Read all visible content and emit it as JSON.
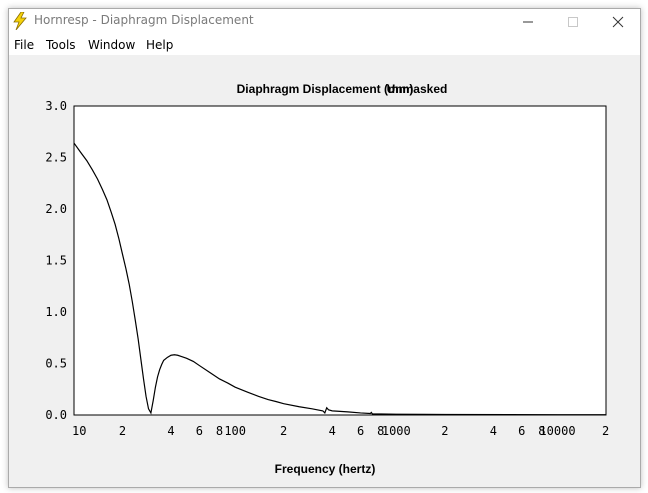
{
  "window": {
    "title": "Hornresp - Diaphragm Displacement",
    "icon": "lightning-bolt-icon",
    "controls": [
      "minimize-icon",
      "maximize-icon",
      "close-icon"
    ]
  },
  "menu": {
    "items": [
      "File",
      "Tools",
      "Window",
      "Help"
    ]
  },
  "chart_title": "Diaphragm Displacement (mm)",
  "mask_status": "Unmasked",
  "colors": {
    "grid": "#c8c8c8",
    "axis": "#000000",
    "curve": "#000000",
    "plot_bg": "#ffffff"
  },
  "chart_data": {
    "type": "line",
    "title": "Diaphragm Displacement (mm)",
    "xlabel": "Frequency (hertz)",
    "ylabel": "",
    "xscale": "log",
    "xlim": [
      10,
      20000
    ],
    "ylim": [
      0,
      3.0
    ],
    "grid": true,
    "y_ticks": [
      "3.0",
      "2.5",
      "2.0",
      "1.5",
      "1.0",
      "0.5",
      "0.0"
    ],
    "x_ticks": [
      {
        "value": 10,
        "label": "10"
      },
      {
        "value": 20,
        "label": "2"
      },
      {
        "value": 40,
        "label": "4"
      },
      {
        "value": 60,
        "label": "6"
      },
      {
        "value": 80,
        "label": "8"
      },
      {
        "value": 100,
        "label": "100"
      },
      {
        "value": 200,
        "label": "2"
      },
      {
        "value": 400,
        "label": "4"
      },
      {
        "value": 600,
        "label": "6"
      },
      {
        "value": 800,
        "label": "8"
      },
      {
        "value": 1000,
        "label": "1000"
      },
      {
        "value": 2000,
        "label": "2"
      },
      {
        "value": 4000,
        "label": "4"
      },
      {
        "value": 6000,
        "label": "6"
      },
      {
        "value": 8000,
        "label": "8"
      },
      {
        "value": 10000,
        "label": "10000"
      },
      {
        "value": 20000,
        "label": "2"
      }
    ],
    "series": [
      {
        "x": [
          10,
          11,
          12,
          13,
          14,
          15,
          16,
          17,
          18,
          19,
          20,
          21,
          22,
          23,
          24,
          25,
          26,
          27,
          28,
          29,
          30,
          31,
          32,
          33,
          34,
          35,
          36,
          38,
          40,
          42,
          44,
          46,
          48,
          50,
          55,
          60,
          70,
          80,
          90,
          100,
          120,
          140,
          160,
          180,
          200,
          250,
          300,
          350,
          360,
          370,
          380,
          400,
          500,
          600,
          690,
          700,
          710,
          800,
          1000,
          1500,
          2000,
          5000,
          10000,
          20000
        ],
        "y": [
          2.64,
          2.55,
          2.47,
          2.38,
          2.29,
          2.19,
          2.09,
          1.97,
          1.85,
          1.71,
          1.56,
          1.42,
          1.27,
          1.1,
          0.92,
          0.74,
          0.54,
          0.35,
          0.18,
          0.06,
          0.02,
          0.14,
          0.27,
          0.37,
          0.44,
          0.49,
          0.53,
          0.56,
          0.58,
          0.585,
          0.58,
          0.57,
          0.56,
          0.55,
          0.52,
          0.48,
          0.41,
          0.35,
          0.31,
          0.27,
          0.22,
          0.18,
          0.15,
          0.13,
          0.11,
          0.08,
          0.06,
          0.04,
          0.02,
          0.07,
          0.05,
          0.04,
          0.03,
          0.02,
          0.015,
          0.025,
          0.01,
          0.01,
          0.008,
          0.006,
          0.005,
          0.004,
          0.003,
          0.003
        ]
      }
    ]
  }
}
